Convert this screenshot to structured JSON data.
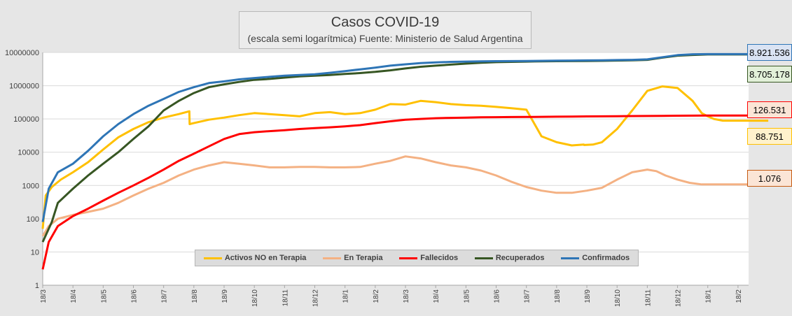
{
  "chart_data": {
    "type": "line",
    "title": "Casos COVID-19",
    "subtitle": "(escala semi logarítmica) Fuente: Ministerio de Salud Argentina",
    "yscale": "log",
    "ylim": [
      1,
      10000000
    ],
    "y_ticks": [
      "10000000",
      "1000000",
      "100000",
      "10000",
      "1000",
      "100",
      "10",
      "1"
    ],
    "x_ticks": [
      "18/3",
      "18/4",
      "18/5",
      "18/6",
      "18/7",
      "18/8",
      "18/9",
      "18/10",
      "18/11",
      "18/12",
      "18/1",
      "18/2",
      "18/3",
      "18/4",
      "18/5",
      "18/6",
      "18/7",
      "18/8",
      "18/9",
      "18/10",
      "18/11",
      "18/12",
      "18/1",
      "18/2"
    ],
    "grid": true,
    "legend_position": "bottom",
    "series": [
      {
        "name": "Activos NO en Terapia",
        "color": "#ffc000",
        "x": [
          0,
          0.1,
          0.3,
          0.6,
          1,
          1.5,
          2,
          2.5,
          3,
          3.5,
          4,
          4.5,
          4.85,
          4.86,
          5,
          5.5,
          6,
          6.5,
          7,
          7.5,
          8,
          8.5,
          9,
          9.5,
          10,
          10.5,
          11,
          11.5,
          12,
          12.5,
          13,
          13.5,
          14,
          14.5,
          15,
          15.5,
          16,
          16.5,
          17,
          17.5,
          17.9,
          17.91,
          18.2,
          18.5,
          19,
          19.5,
          20,
          20.5,
          21,
          21.5,
          21.8,
          22,
          22.2,
          22.5,
          22.8,
          23,
          23.3,
          23.6,
          24
        ],
        "y": [
          50,
          500,
          900,
          1500,
          2500,
          5000,
          12000,
          28000,
          50000,
          80000,
          110000,
          140000,
          170000,
          70000,
          75000,
          95000,
          110000,
          130000,
          150000,
          140000,
          130000,
          120000,
          150000,
          160000,
          140000,
          150000,
          190000,
          280000,
          270000,
          350000,
          320000,
          280000,
          260000,
          250000,
          230000,
          210000,
          190000,
          30000,
          20000,
          16000,
          17000,
          16500,
          17000,
          20000,
          50000,
          180000,
          700000,
          950000,
          850000,
          350000,
          150000,
          120000,
          100000,
          88751,
          88751,
          88751,
          88751,
          88751,
          88751
        ]
      },
      {
        "name": "En Terapia",
        "color": "#f4b183",
        "x": [
          0,
          0.2,
          0.5,
          1,
          1.5,
          2,
          2.5,
          3,
          3.5,
          4,
          4.5,
          5,
          5.5,
          6,
          6.5,
          7,
          7.5,
          8,
          8.5,
          9,
          9.5,
          10,
          10.5,
          11,
          11.5,
          12,
          12.5,
          13,
          13.5,
          14,
          14.5,
          15,
          15.5,
          16,
          16.5,
          17,
          17.5,
          18,
          18.5,
          19,
          19.5,
          20,
          20.3,
          20.6,
          21,
          21.4,
          21.8,
          22,
          22.4,
          22.8,
          23,
          23.5,
          24
        ],
        "y": [
          30,
          60,
          100,
          130,
          160,
          200,
          300,
          500,
          800,
          1200,
          2000,
          3000,
          4000,
          5000,
          4500,
          4000,
          3500,
          3500,
          3600,
          3600,
          3500,
          3500,
          3600,
          4500,
          5500,
          7500,
          6500,
          5000,
          4000,
          3500,
          2800,
          2000,
          1300,
          900,
          700,
          600,
          600,
          700,
          850,
          1500,
          2500,
          3000,
          2700,
          2000,
          1500,
          1200,
          1076,
          1076,
          1076,
          1076,
          1076,
          1076,
          1076
        ]
      },
      {
        "name": "Fallecidos",
        "color": "#ff0000",
        "x": [
          0,
          0.2,
          0.5,
          1,
          1.5,
          2,
          2.5,
          3,
          3.5,
          4,
          4.5,
          5,
          5.5,
          6,
          6.5,
          7,
          7.5,
          8,
          8.5,
          9,
          9.5,
          10,
          10.5,
          11,
          11.5,
          12,
          12.5,
          13,
          13.5,
          14,
          14.5,
          15,
          15.5,
          16,
          16.5,
          17,
          17.5,
          18,
          18.5,
          19,
          19.5,
          20,
          20.5,
          21,
          21.5,
          22,
          22.5,
          23,
          23.5,
          24
        ],
        "y": [
          3,
          20,
          60,
          120,
          200,
          350,
          600,
          1000,
          1700,
          3000,
          5500,
          9000,
          15000,
          25000,
          35000,
          40000,
          43000,
          46000,
          50000,
          53000,
          56000,
          60000,
          65000,
          75000,
          85000,
          95000,
          100000,
          105000,
          108000,
          110000,
          112000,
          113000,
          114000,
          115000,
          116000,
          117000,
          118000,
          119000,
          120000,
          121000,
          122000,
          123000,
          124000,
          125000,
          126000,
          126531,
          126531,
          126531,
          126531,
          126531
        ]
      },
      {
        "name": "Recuperados",
        "color": "#375623",
        "x": [
          0,
          0.3,
          0.5,
          1,
          1.5,
          2,
          2.5,
          3,
          3.5,
          4,
          4.5,
          5,
          5.5,
          6,
          6.5,
          7,
          7.5,
          8,
          8.5,
          9,
          9.5,
          10,
          10.5,
          11,
          11.5,
          12,
          12.5,
          13,
          13.5,
          14,
          14.5,
          15,
          15.5,
          16,
          16.5,
          17,
          17.5,
          18,
          18.5,
          19,
          19.5,
          20,
          20.5,
          21,
          21.5,
          22,
          22.5,
          23,
          23.5,
          24
        ],
        "y": [
          20,
          80,
          300,
          800,
          2000,
          4500,
          10000,
          25000,
          60000,
          180000,
          350000,
          600000,
          900000,
          1100000,
          1300000,
          1500000,
          1600000,
          1750000,
          1900000,
          2000000,
          2100000,
          2250000,
          2400000,
          2600000,
          2900000,
          3300000,
          3700000,
          4000000,
          4300000,
          4600000,
          4900000,
          5100000,
          5200000,
          5300000,
          5400000,
          5450000,
          5500000,
          5550000,
          5600000,
          5700000,
          5800000,
          6000000,
          7000000,
          8000000,
          8400000,
          8705178,
          8705178,
          8705178,
          8705178,
          8705178
        ]
      },
      {
        "name": "Confirmados",
        "color": "#2e75b6",
        "x": [
          0,
          0.2,
          0.5,
          1,
          1.5,
          2,
          2.5,
          3,
          3.5,
          4,
          4.5,
          5,
          5.5,
          6,
          6.5,
          7,
          7.5,
          8,
          8.5,
          9,
          9.5,
          10,
          10.5,
          11,
          11.5,
          12,
          12.5,
          13,
          13.5,
          14,
          14.5,
          15,
          15.5,
          16,
          16.5,
          17,
          17.5,
          18,
          18.5,
          19,
          19.5,
          20,
          20.5,
          21,
          21.5,
          22,
          22.5,
          23,
          23.5,
          24
        ],
        "y": [
          80,
          800,
          2500,
          4500,
          11000,
          30000,
          70000,
          140000,
          250000,
          400000,
          650000,
          900000,
          1200000,
          1350000,
          1550000,
          1700000,
          1850000,
          2000000,
          2100000,
          2200000,
          2450000,
          2750000,
          3100000,
          3500000,
          4000000,
          4400000,
          4800000,
          5000000,
          5200000,
          5300000,
          5400000,
          5450000,
          5500000,
          5550000,
          5600000,
          5650000,
          5700000,
          5750000,
          5800000,
          5900000,
          6000000,
          6200000,
          7200000,
          8300000,
          8800000,
          8921536,
          8921536,
          8921536,
          8921536,
          8921536
        ]
      }
    ],
    "callouts": [
      {
        "series": "Confirmados",
        "label": "8.921.536",
        "bg": "#dae3f3",
        "border": "#2e75b6"
      },
      {
        "series": "Recuperados",
        "label": "8.705.178",
        "bg": "#e2f0d9",
        "border": "#375623"
      },
      {
        "series": "Fallecidos",
        "label": "126.531",
        "bg": "#fbe5d6",
        "border": "#ff0000"
      },
      {
        "series": "Activos NO en Terapia",
        "label": "88.751",
        "bg": "#fff2cc",
        "border": "#ffc000"
      },
      {
        "series": "En Terapia",
        "label": "1.076",
        "bg": "#fbe5d6",
        "border": "#c55a11"
      }
    ]
  }
}
